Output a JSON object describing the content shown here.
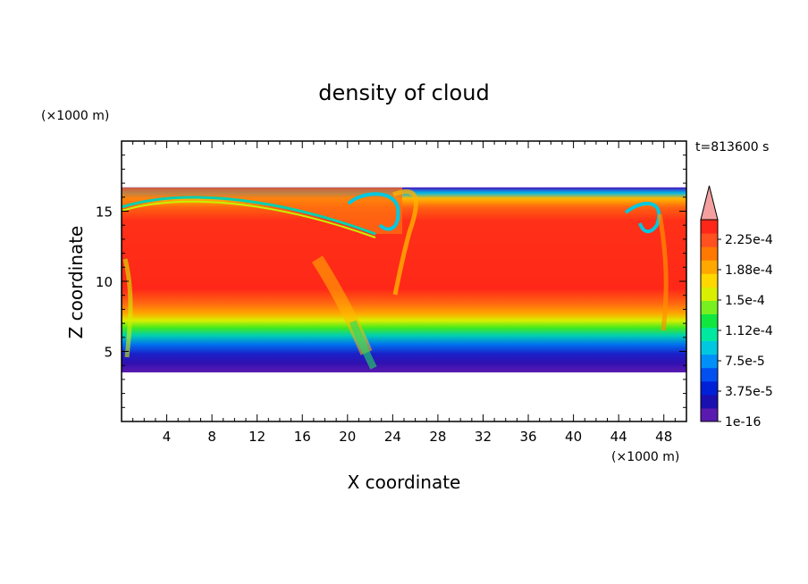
{
  "chart_data": {
    "type": "heatmap",
    "title": "density of cloud",
    "xlabel": "X coordinate",
    "ylabel": "Z coordinate",
    "x_unit": "(×1000 m)",
    "y_unit": "(×1000 m)",
    "time_label": "t=813600 s",
    "xlim": [
      0,
      50
    ],
    "ylim": [
      0,
      20
    ],
    "x_ticks": [
      4,
      8,
      12,
      16,
      20,
      24,
      28,
      32,
      36,
      40,
      44,
      48
    ],
    "y_ticks": [
      5,
      10,
      15
    ],
    "cloud_layer": {
      "bottom": 3.5,
      "top": 16.7,
      "core_value": 0.00023
    },
    "colorbar": {
      "ticks": [
        {
          "value": 0.000225,
          "label": "2.25e-4"
        },
        {
          "value": 0.000188,
          "label": "1.88e-4"
        },
        {
          "value": 0.00015,
          "label": "1.5e-4"
        },
        {
          "value": 0.000112,
          "label": "1.12e-4"
        },
        {
          "value": 7.5e-05,
          "label": "7.5e-5"
        },
        {
          "value": 3.75e-05,
          "label": "3.75e-5"
        },
        {
          "value": 1e-16,
          "label": "1e-16"
        }
      ],
      "colors": [
        "#5a1ab0",
        "#1a10b0",
        "#0020d8",
        "#0050f0",
        "#0090f8",
        "#00c8e0",
        "#00e8a0",
        "#10e840",
        "#78f020",
        "#d8f000",
        "#ffd800",
        "#ffa800",
        "#ff7800",
        "#ff5020",
        "#ff2818"
      ],
      "extend_color": "#f4a0a0"
    }
  }
}
